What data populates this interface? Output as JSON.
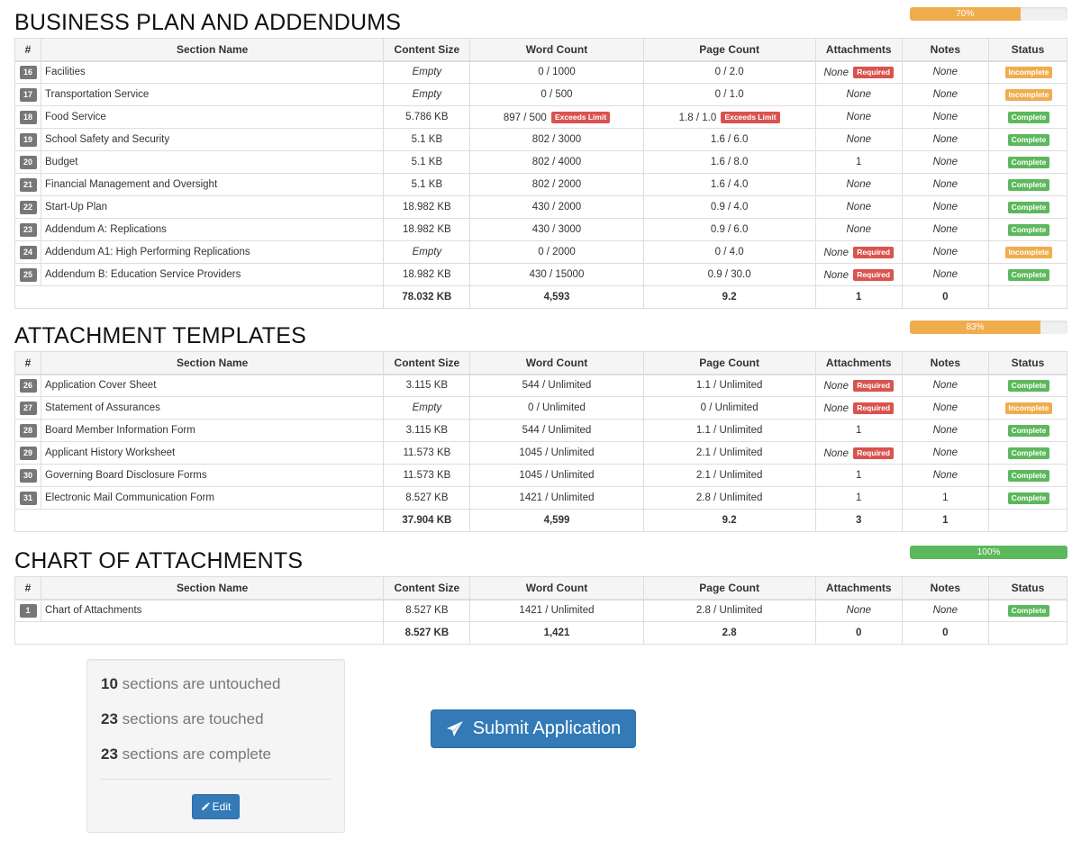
{
  "columns": [
    "#",
    "Section Name",
    "Content Size",
    "Word Count",
    "Page Count",
    "Attachments",
    "Notes",
    "Status"
  ],
  "sections": [
    {
      "title": "BUSINESS PLAN AND ADDENDUMS",
      "progress": {
        "percent": 70,
        "label": "70%",
        "color": "#f0ad4e"
      },
      "rows": [
        {
          "num": "16",
          "name": "Facilities",
          "size": "Empty",
          "words": "0 / 1000",
          "words_flag": "",
          "pages": "0 / 2.0",
          "pages_flag": "",
          "attachments": "None",
          "attachments_flag": "Required",
          "notes": "None",
          "status": "Incomplete"
        },
        {
          "num": "17",
          "name": "Transportation Service",
          "size": "Empty",
          "words": "0 / 500",
          "words_flag": "",
          "pages": "0 / 1.0",
          "pages_flag": "",
          "attachments": "None",
          "attachments_flag": "",
          "notes": "None",
          "status": "Incomplete"
        },
        {
          "num": "18",
          "name": "Food Service",
          "size": "5.786 KB",
          "words": "897 / 500",
          "words_flag": "Exceeds Limit",
          "pages": "1.8 / 1.0",
          "pages_flag": "Exceeds Limit",
          "attachments": "None",
          "attachments_flag": "",
          "notes": "None",
          "status": "Complete"
        },
        {
          "num": "19",
          "name": "School Safety and Security",
          "size": "5.1 KB",
          "words": "802 / 3000",
          "words_flag": "",
          "pages": "1.6 / 6.0",
          "pages_flag": "",
          "attachments": "None",
          "attachments_flag": "",
          "notes": "None",
          "status": "Complete"
        },
        {
          "num": "20",
          "name": "Budget",
          "size": "5.1 KB",
          "words": "802 / 4000",
          "words_flag": "",
          "pages": "1.6 / 8.0",
          "pages_flag": "",
          "attachments": "1",
          "attachments_flag": "",
          "notes": "None",
          "status": "Complete"
        },
        {
          "num": "21",
          "name": "Financial Management and Oversight",
          "size": "5.1 KB",
          "words": "802 / 2000",
          "words_flag": "",
          "pages": "1.6 / 4.0",
          "pages_flag": "",
          "attachments": "None",
          "attachments_flag": "",
          "notes": "None",
          "status": "Complete"
        },
        {
          "num": "22",
          "name": "Start-Up Plan",
          "size": "18.982 KB",
          "words": "430 / 2000",
          "words_flag": "",
          "pages": "0.9 / 4.0",
          "pages_flag": "",
          "attachments": "None",
          "attachments_flag": "",
          "notes": "None",
          "status": "Complete"
        },
        {
          "num": "23",
          "name": "Addendum A: Replications",
          "size": "18.982 KB",
          "words": "430 / 3000",
          "words_flag": "",
          "pages": "0.9 / 6.0",
          "pages_flag": "",
          "attachments": "None",
          "attachments_flag": "",
          "notes": "None",
          "status": "Complete"
        },
        {
          "num": "24",
          "name": "Addendum A1: High Performing Replications",
          "size": "Empty",
          "words": "0 / 2000",
          "words_flag": "",
          "pages": "0 / 4.0",
          "pages_flag": "",
          "attachments": "None",
          "attachments_flag": "Required",
          "notes": "None",
          "status": "Incomplete"
        },
        {
          "num": "25",
          "name": "Addendum B: Education Service Providers",
          "size": "18.982 KB",
          "words": "430 / 15000",
          "words_flag": "",
          "pages": "0.9 / 30.0",
          "pages_flag": "",
          "attachments": "None",
          "attachments_flag": "Required",
          "notes": "None",
          "status": "Complete"
        }
      ],
      "totals": {
        "size": "78.032 KB",
        "words": "4,593",
        "pages": "9.2",
        "attachments": "1",
        "notes": "0"
      }
    },
    {
      "title": "ATTACHMENT TEMPLATES",
      "progress": {
        "percent": 83,
        "label": "83%",
        "color": "#f0ad4e"
      },
      "rows": [
        {
          "num": "26",
          "name": "Application Cover Sheet",
          "size": "3.115 KB",
          "words": "544 / Unlimited",
          "words_flag": "",
          "pages": "1.1 / Unlimited",
          "pages_flag": "",
          "attachments": "None",
          "attachments_flag": "Required",
          "notes": "None",
          "status": "Complete"
        },
        {
          "num": "27",
          "name": "Statement of Assurances",
          "size": "Empty",
          "words": "0 / Unlimited",
          "words_flag": "",
          "pages": "0 / Unlimited",
          "pages_flag": "",
          "attachments": "None",
          "attachments_flag": "Required",
          "notes": "None",
          "status": "Incomplete"
        },
        {
          "num": "28",
          "name": "Board Member Information Form",
          "size": "3.115 KB",
          "words": "544 / Unlimited",
          "words_flag": "",
          "pages": "1.1 / Unlimited",
          "pages_flag": "",
          "attachments": "1",
          "attachments_flag": "",
          "notes": "None",
          "status": "Complete"
        },
        {
          "num": "29",
          "name": "Applicant History Worksheet",
          "size": "11.573 KB",
          "words": "1045 / Unlimited",
          "words_flag": "",
          "pages": "2.1 / Unlimited",
          "pages_flag": "",
          "attachments": "None",
          "attachments_flag": "Required",
          "notes": "None",
          "status": "Complete"
        },
        {
          "num": "30",
          "name": "Governing Board Disclosure Forms",
          "size": "11.573 KB",
          "words": "1045 / Unlimited",
          "words_flag": "",
          "pages": "2.1 / Unlimited",
          "pages_flag": "",
          "attachments": "1",
          "attachments_flag": "",
          "notes": "None",
          "status": "Complete"
        },
        {
          "num": "31",
          "name": "Electronic Mail Communication Form",
          "size": "8.527 KB",
          "words": "1421 / Unlimited",
          "words_flag": "",
          "pages": "2.8 / Unlimited",
          "pages_flag": "",
          "attachments": "1",
          "attachments_flag": "",
          "notes": "1",
          "status": "Complete"
        }
      ],
      "totals": {
        "size": "37.904 KB",
        "words": "4,599",
        "pages": "9.2",
        "attachments": "3",
        "notes": "1"
      }
    },
    {
      "title": "CHART OF ATTACHMENTS",
      "progress": {
        "percent": 100,
        "label": "100%",
        "color": "#5cb85c"
      },
      "rows": [
        {
          "num": "1",
          "name": "Chart of Attachments",
          "size": "8.527 KB",
          "words": "1421 / Unlimited",
          "words_flag": "",
          "pages": "2.8 / Unlimited",
          "pages_flag": "",
          "attachments": "None",
          "attachments_flag": "",
          "notes": "None",
          "status": "Complete"
        }
      ],
      "totals": {
        "size": "8.527 KB",
        "words": "1,421",
        "pages": "2.8",
        "attachments": "0",
        "notes": "0"
      }
    }
  ],
  "summary": {
    "untouched_count": "10",
    "untouched_text": "sections are untouched",
    "touched_count": "23",
    "touched_text": "sections are touched",
    "complete_count": "23",
    "complete_text": "sections are complete",
    "edit_label": "Edit",
    "edit_icon": "pencil-icon"
  },
  "submit": {
    "label": "Submit Application",
    "icon": "paper-plane-icon"
  }
}
